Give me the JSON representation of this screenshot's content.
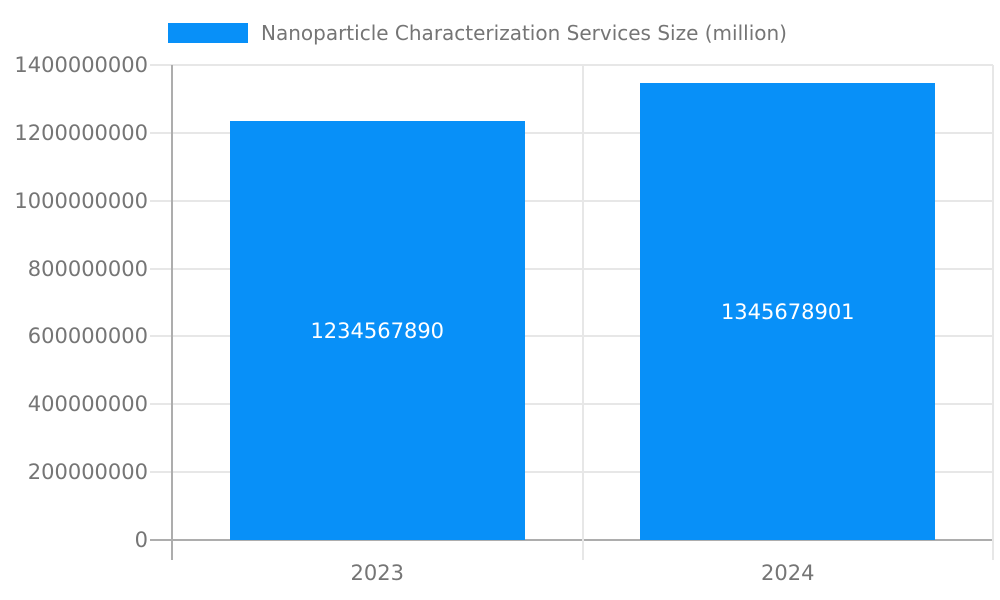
{
  "legend": {
    "label": "Nanoparticle Characterization Services Size (million)"
  },
  "colors": {
    "bar": "#0890F8",
    "grid": "#E7E7E7",
    "axis": "#ADADAD",
    "text": "#757575",
    "bar_label": "#FFFFFF",
    "background": "#FFFFFF"
  },
  "chart_data": {
    "type": "bar",
    "title": "",
    "categories": [
      "2023",
      "2024"
    ],
    "series": [
      {
        "name": "Nanoparticle Characterization Services Size (million)",
        "values": [
          1234567890,
          1345678901
        ]
      }
    ],
    "bar_value_labels": [
      "1234567890",
      "1345678901"
    ],
    "xlabel": "",
    "ylabel": "",
    "ylim": [
      0,
      1400000000
    ],
    "yticks": [
      0,
      200000000,
      400000000,
      600000000,
      800000000,
      1000000000,
      1200000000,
      1400000000
    ],
    "ytick_labels": [
      "0",
      "200000000",
      "400000000",
      "600000000",
      "800000000",
      "1000000000",
      "1200000000",
      "1400000000"
    ],
    "grid": true,
    "legend_position": "top"
  }
}
